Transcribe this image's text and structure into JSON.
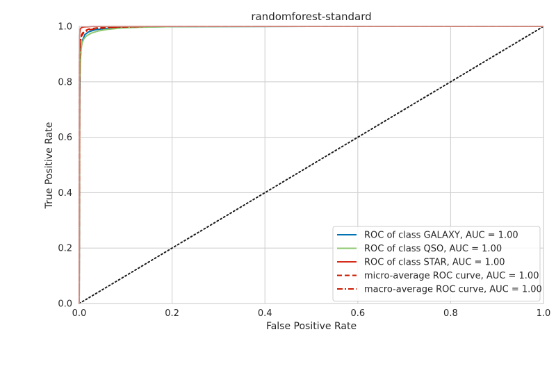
{
  "chart_data": {
    "type": "line",
    "title": "randomforest-standard",
    "xlabel": "False Positive Rate",
    "ylabel": "True Positive Rate",
    "xlim": [
      0,
      1
    ],
    "ylim": [
      0,
      1
    ],
    "x_ticks": [
      0,
      0.2,
      0.4,
      0.6,
      0.8,
      1
    ],
    "x_tick_labels": [
      "0.0",
      "0.2",
      "0.4",
      "0.6",
      "0.8",
      "1.0"
    ],
    "y_ticks": [
      0,
      0.2,
      0.4,
      0.6,
      0.8,
      1
    ],
    "y_tick_labels": [
      "0.0",
      "0.2",
      "0.4",
      "0.6",
      "0.8",
      "1.0"
    ],
    "grid": true,
    "legend_position": "bottom-right",
    "series": [
      {
        "name": "ROC of class GALAXY, AUC = 1.00",
        "color": "#0072b2",
        "style": "solid",
        "x": [
          0,
          0.001,
          0.002,
          0.004,
          0.007,
          0.012,
          0.02,
          0.035,
          0.06,
          0.1,
          0.2,
          0.5,
          1.0
        ],
        "y": [
          0,
          0.75,
          0.86,
          0.92,
          0.95,
          0.97,
          0.98,
          0.988,
          0.993,
          0.997,
          0.999,
          1.0,
          1.0
        ]
      },
      {
        "name": "ROC of class QSO, AUC = 1.00",
        "color": "#8dc86f",
        "style": "solid",
        "x": [
          0,
          0.001,
          0.003,
          0.006,
          0.01,
          0.015,
          0.025,
          0.04,
          0.06,
          0.09,
          0.13,
          0.2,
          0.5,
          1.0
        ],
        "y": [
          0,
          0.8,
          0.9,
          0.94,
          0.955,
          0.965,
          0.975,
          0.983,
          0.989,
          0.994,
          0.997,
          0.999,
          1.0,
          1.0
        ]
      },
      {
        "name": "ROC of class STAR, AUC = 1.00",
        "color": "#d62c1a",
        "style": "solid",
        "x": [
          0,
          0.0005,
          0.002,
          0.005,
          0.01,
          0.03,
          0.1,
          1.0
        ],
        "y": [
          0,
          0.97,
          0.99,
          0.996,
          0.998,
          1.0,
          1.0,
          1.0
        ]
      },
      {
        "name": "micro-average ROC curve, AUC = 1.00",
        "color": "#cc1a00",
        "style": "dashed",
        "x": [
          0,
          0.0005,
          0.002,
          0.005,
          0.01,
          0.02,
          0.04,
          0.08,
          0.15,
          1.0
        ],
        "y": [
          0,
          0.9,
          0.95,
          0.97,
          0.982,
          0.99,
          0.995,
          0.998,
          1.0,
          1.0
        ]
      },
      {
        "name": "macro-average ROC curve, AUC = 1.00",
        "color": "#cc1a00",
        "style": "dashdot",
        "x": [
          0,
          0.0005,
          0.002,
          0.005,
          0.01,
          0.02,
          0.04,
          0.08,
          0.15,
          1.0
        ],
        "y": [
          0,
          0.88,
          0.94,
          0.965,
          0.978,
          0.987,
          0.993,
          0.997,
          1.0,
          1.0
        ]
      }
    ],
    "reference_line": {
      "color": "#1a1a1a",
      "style": "dotted",
      "x": [
        0,
        1
      ],
      "y": [
        0,
        1
      ]
    }
  }
}
